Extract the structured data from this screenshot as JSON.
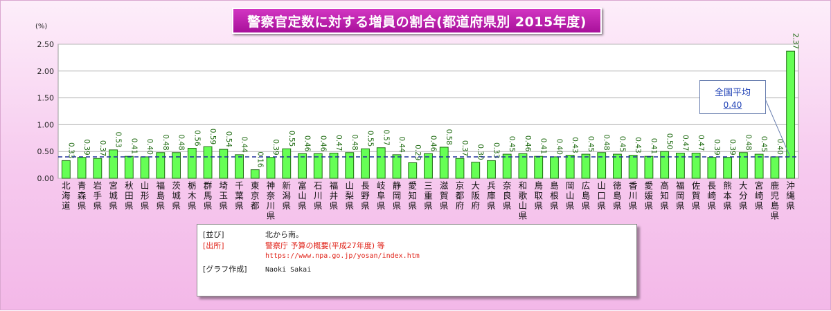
{
  "chart_data": {
    "type": "bar",
    "title": "警察官定数に対する増員の割合(都道府県別 2015年度)",
    "ylabel": "(%)",
    "ylim": [
      0,
      2.5
    ],
    "yticks": [
      "0.00",
      "0.50",
      "1.00",
      "1.50",
      "2.00",
      "2.50"
    ],
    "grid": true,
    "categories": [
      "北海道",
      "青森県",
      "岩手県",
      "宮城県",
      "秋田県",
      "山形県",
      "福島県",
      "茨城県",
      "栃木県",
      "群馬県",
      "埼玉県",
      "千葉県",
      "東京都",
      "神奈川県",
      "新潟県",
      "富山県",
      "石川県",
      "福井県",
      "山梨県",
      "長野県",
      "岐阜県",
      "静岡県",
      "愛知県",
      "三重県",
      "滋賀県",
      "京都府",
      "大阪府",
      "兵庫県",
      "奈良県",
      "和歌山県",
      "鳥取県",
      "島根県",
      "岡山県",
      "広島県",
      "山口県",
      "徳島県",
      "香川県",
      "愛媛県",
      "高知県",
      "福岡県",
      "佐賀県",
      "長崎県",
      "熊本県",
      "大分県",
      "宮崎県",
      "鹿児島県",
      "沖縄県"
    ],
    "values": [
      0.33,
      0.39,
      0.37,
      0.53,
      0.41,
      0.4,
      0.48,
      0.48,
      0.56,
      0.59,
      0.54,
      0.44,
      0.16,
      0.39,
      0.55,
      0.46,
      0.46,
      0.47,
      0.48,
      0.55,
      0.57,
      0.44,
      0.29,
      0.46,
      0.58,
      0.37,
      0.3,
      0.33,
      0.45,
      0.46,
      0.41,
      0.4,
      0.43,
      0.45,
      0.48,
      0.45,
      0.43,
      0.41,
      0.5,
      0.47,
      0.47,
      0.39,
      0.39,
      0.48,
      0.45,
      0.4,
      2.37
    ],
    "value_labels": [
      "0.33",
      "0.39",
      "0.37",
      "0.53",
      "0.41",
      "0.40",
      "0.48",
      "0.48",
      "0.56",
      "0.59",
      "0.54",
      "0.44",
      "0.16",
      "0.39",
      "0.55",
      "0.46",
      "0.46",
      "0.47",
      "0.48",
      "0.55",
      "0.57",
      "0.44",
      "0.29",
      "0.46",
      "0.58",
      "0.37",
      "0.30",
      "0.33",
      "0.45",
      "0.46",
      "0.41",
      "0.40",
      "0.43",
      "0.45",
      "0.48",
      "0.45",
      "0.43",
      "0.41",
      "0.50",
      "0.47",
      "0.47",
      "0.39",
      "0.39",
      "0.48",
      "0.45",
      "0.40",
      "2.37"
    ],
    "average": {
      "label": "全国平均",
      "value": 0.4,
      "value_text": "0.40"
    },
    "colors": {
      "bar_fill": "#66ff55",
      "bar_stroke": "#1f6b12",
      "avg_line": "#1f2f9a"
    }
  },
  "notes": {
    "order_key": "[並び]",
    "order_value": "北から南。",
    "source_key": "[出所]",
    "source_value": "警察庁 予算の概要(平成27年度) 等",
    "source_url": "https://www.npa.go.jp/yosan/index.htm",
    "author_key": "[グラフ作成]",
    "author_value": "Naoki Sakai"
  }
}
